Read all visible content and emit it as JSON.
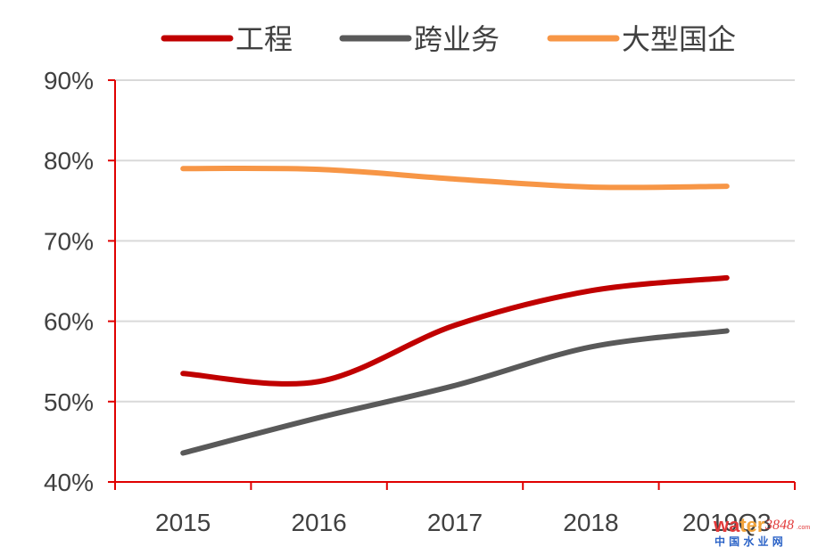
{
  "chart_data": {
    "type": "line",
    "categories": [
      "2015",
      "2016",
      "2017",
      "2018",
      "2019Q3"
    ],
    "series": [
      {
        "name": "工程",
        "values": [
          53.5,
          52.5,
          59.5,
          63.8,
          65.4
        ],
        "color": "#c00000"
      },
      {
        "name": "跨业务",
        "values": [
          43.6,
          48.0,
          52.0,
          56.8,
          58.8
        ],
        "color": "#595959"
      },
      {
        "name": "大型国企",
        "values": [
          79.0,
          78.9,
          77.7,
          76.7,
          76.8
        ],
        "color": "#f79646"
      }
    ],
    "ylim": [
      40,
      90
    ],
    "yticks": [
      "40%",
      "50%",
      "60%",
      "70%",
      "80%",
      "90%"
    ],
    "grid": true,
    "smooth": true,
    "legend": "top",
    "axis_color": "#e00000",
    "grid_color": "#d9d9d9"
  },
  "watermark": {
    "brand_a": "wa",
    "brand_b": "ter",
    "number": "3848",
    "domain": ".com",
    "chinese": "中 国 水 业 网"
  }
}
